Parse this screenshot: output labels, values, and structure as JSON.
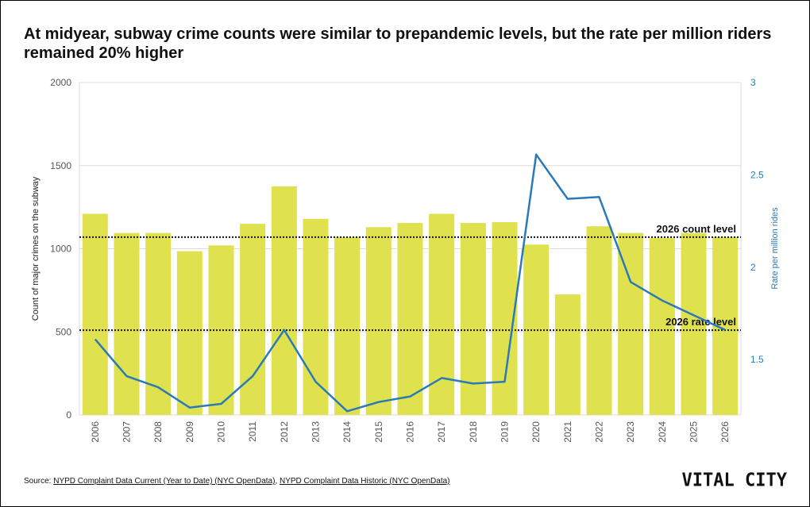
{
  "title": "At midyear, subway crime counts were similar to prepandemic levels, but the rate per million riders remained 20% higher",
  "footer": {
    "source_label": "Source: ",
    "link1": "NYPD Complaint Data Current (Year to Date) (NYC OpenData)",
    "separator": ", ",
    "link2": "NYPD Complaint Data Historic (NYC OpenData)"
  },
  "logo": "VITAL CITY",
  "colors": {
    "bars": "#dfe24e",
    "rate_line": "#2a7ab9",
    "reference_lines": "#111111"
  },
  "chart_data": {
    "type": "bar",
    "categories": [
      "2006",
      "2007",
      "2008",
      "2009",
      "2010",
      "2011",
      "2012",
      "2013",
      "2014",
      "2015",
      "2016",
      "2017",
      "2018",
      "2019",
      "2020",
      "2021",
      "2022",
      "2023",
      "2024",
      "2025",
      "2026"
    ],
    "series": [
      {
        "type": "bar",
        "axis": "left",
        "values": [
          1210,
          1095,
          1095,
          985,
          1020,
          1150,
          1375,
          1180,
          1070,
          1130,
          1155,
          1210,
          1155,
          1160,
          1025,
          725,
          1135,
          1095,
          1065,
          1095,
          1070
        ]
      },
      {
        "type": "line",
        "axis": "right",
        "values": [
          1.61,
          1.41,
          1.35,
          1.24,
          1.26,
          1.41,
          1.66,
          1.38,
          1.22,
          1.27,
          1.3,
          1.4,
          1.37,
          1.38,
          2.61,
          2.37,
          2.38,
          1.92,
          1.82,
          1.74,
          1.66
        ]
      }
    ],
    "ylabel": "Count of major crimes on the subway",
    "y2label": "Rate per million rides",
    "ylim": [
      0,
      2000
    ],
    "y2lim": [
      1.2,
      3.0
    ],
    "yticks": [
      "0",
      "500",
      "1000",
      "1500",
      "2000"
    ],
    "y2ticks": [
      "1.5",
      "2",
      "2.5",
      "3"
    ],
    "reference_lines": [
      {
        "label": "2026 count level",
        "axis": "left",
        "value": 1070
      },
      {
        "label": "2026 rate level",
        "axis": "left",
        "value": 510
      }
    ],
    "grid": true
  }
}
